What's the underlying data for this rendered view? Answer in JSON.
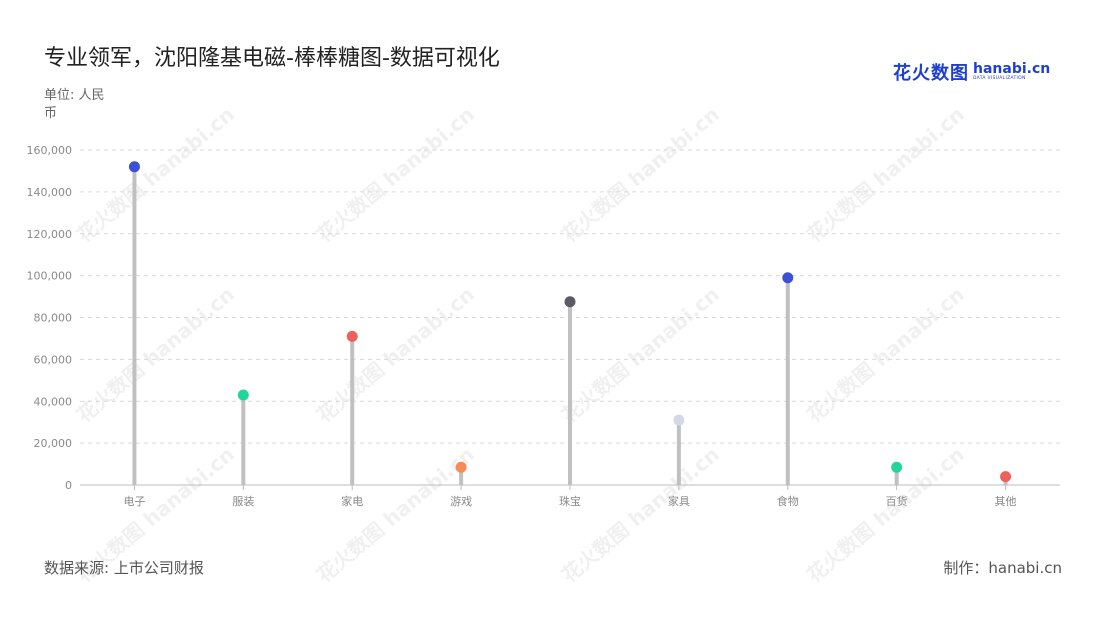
{
  "title": "专业领军，沈阳隆基电磁-棒棒糖图-数据可视化",
  "unit_label": "单位: 人民币",
  "source": "数据来源: 上市公司财报",
  "credit": "制作：hanabi.cn",
  "logo": {
    "cn": "花火数图",
    "en": "hanabi.cn",
    "sub": "DATA VISUALIZATION",
    "watermark_repeat": "花火数图 hanabi.cn"
  },
  "chart_data": {
    "type": "lollipop",
    "categories": [
      "电子",
      "服装",
      "家电",
      "游戏",
      "珠宝",
      "家具",
      "食物",
      "百货",
      "其他"
    ],
    "values": [
      152000,
      43000,
      71000,
      8500,
      87500,
      31000,
      99000,
      8500,
      4000
    ],
    "colors": [
      "#3b4fd8",
      "#22d69a",
      "#f0605a",
      "#f78a55",
      "#5b5b66",
      "#d5d9e6",
      "#3b4fd8",
      "#22d69a",
      "#f0605a"
    ],
    "stem_color": "#c0c0c0",
    "ylim": [
      0,
      160000
    ],
    "yticks": [
      0,
      20000,
      40000,
      60000,
      80000,
      100000,
      120000,
      140000,
      160000
    ],
    "ytick_labels": [
      "0",
      "20,000",
      "40,000",
      "60,000",
      "80,000",
      "100,000",
      "120,000",
      "140,000",
      "160,000"
    ],
    "grid": "dashed-horizontal",
    "legend": "none"
  }
}
